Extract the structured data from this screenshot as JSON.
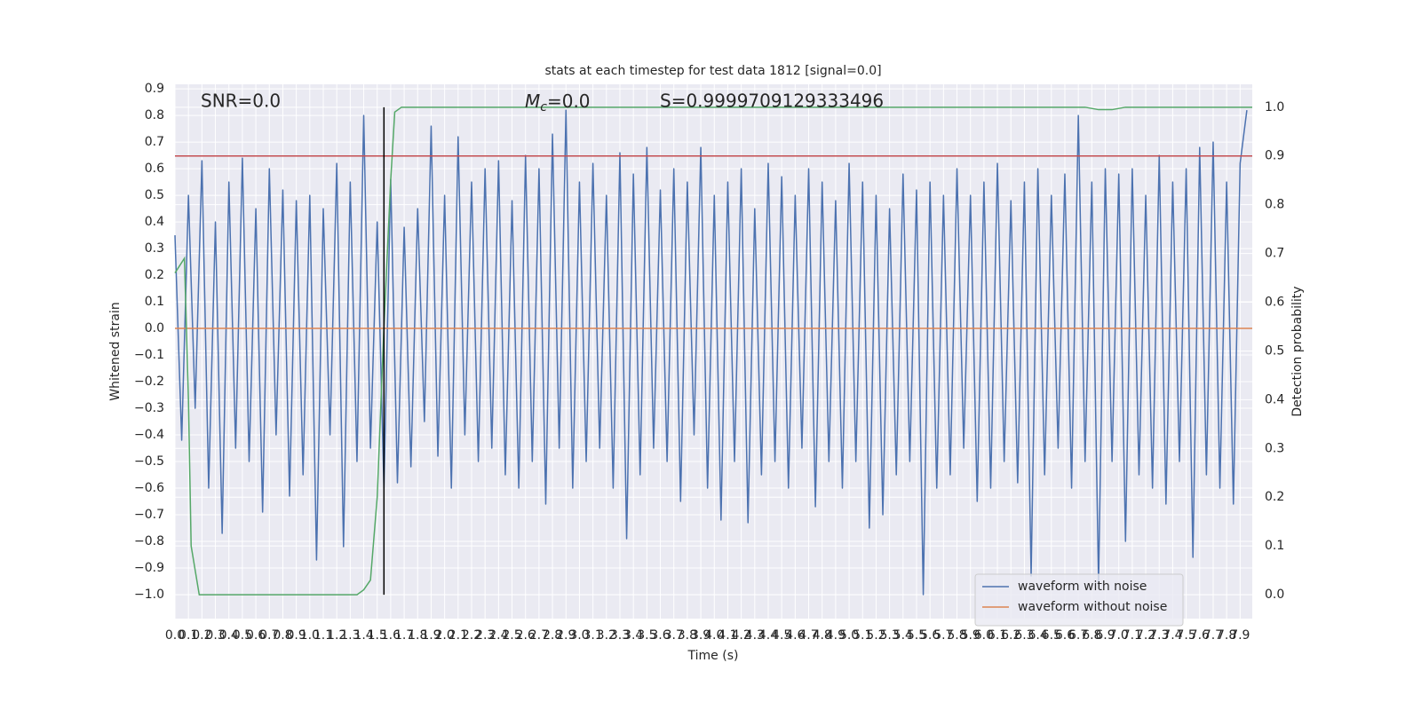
{
  "chart_data": {
    "type": "line",
    "title": "stats at each timestep for test data 1812 [signal=0.0]",
    "x_label": "Time (s)",
    "y_label": "Whitened strain",
    "y2_label": "Detection probability",
    "annotations": {
      "snr": "SNR=0.0",
      "mc_symbol": "M",
      "mc_subscript": "c",
      "mc_text": "=0.0",
      "s": "S=0.9999709129333496"
    },
    "xlim": [
      0,
      7.99
    ],
    "ylim": [
      -1.09,
      0.917
    ],
    "y2lim": [
      -0.049,
      1.047
    ],
    "grid": true,
    "legend": "lower right",
    "xticks": [
      {
        "value": 0,
        "label": "0.0"
      },
      0.1,
      0.2,
      0.3,
      0.4,
      0.5,
      0.6,
      0.7,
      0.8,
      0.9,
      {
        "value": 1,
        "label": "1.0"
      },
      1.1,
      1.2,
      1.3,
      1.4,
      1.5,
      1.6,
      1.7,
      1.8,
      1.9,
      {
        "value": 2,
        "label": "2.0"
      },
      2.1,
      2.2,
      2.3,
      2.4,
      2.5,
      2.6,
      2.7,
      2.8,
      2.9,
      {
        "value": 3,
        "label": "3.0"
      },
      3.1,
      3.2,
      3.3,
      3.4,
      3.5,
      3.6,
      3.7,
      3.8,
      3.9,
      {
        "value": 4,
        "label": "4.0"
      },
      4.1,
      4.2,
      4.3,
      4.4,
      4.5,
      4.6,
      4.7,
      4.8,
      4.9,
      {
        "value": 5,
        "label": "5.0"
      },
      5.1,
      5.2,
      5.3,
      5.4,
      5.5,
      5.6,
      5.7,
      5.8,
      5.9,
      {
        "value": 6,
        "label": "6.0"
      },
      6.1,
      6.2,
      6.3,
      6.4,
      6.5,
      6.6,
      6.7,
      6.8,
      6.9,
      {
        "value": 7,
        "label": "7.0"
      },
      7.1,
      7.2,
      7.3,
      7.4,
      7.5,
      7.6,
      7.7,
      7.8,
      7.9
    ],
    "yticks": [
      {
        "value": -1,
        "label": "−1.0"
      },
      {
        "value": -0.9,
        "label": "−0.9"
      },
      {
        "value": -0.8,
        "label": "−0.8"
      },
      {
        "value": -0.7,
        "label": "−0.7"
      },
      {
        "value": -0.6,
        "label": "−0.6"
      },
      {
        "value": -0.5,
        "label": "−0.5"
      },
      {
        "value": -0.4,
        "label": "−0.4"
      },
      {
        "value": -0.3,
        "label": "−0.3"
      },
      {
        "value": -0.2,
        "label": "−0.2"
      },
      {
        "value": -0.1,
        "label": "−0.1"
      },
      {
        "value": 0,
        "label": "0.0"
      },
      0.1,
      0.2,
      0.3,
      0.4,
      0.5,
      0.6,
      0.7,
      0.8,
      0.9
    ],
    "y2ticks": [
      {
        "value": 0,
        "label": "0.0"
      },
      0.1,
      0.2,
      0.3,
      0.4,
      0.5,
      0.6,
      0.7,
      0.8,
      0.9,
      {
        "value": 1,
        "label": "1.0"
      }
    ],
    "series": [
      {
        "name": "waveform with noise",
        "color": "#4c72b0",
        "x": [
          0,
          0.05,
          0.1,
          0.15,
          0.2,
          0.25,
          0.3,
          0.35,
          0.4,
          0.45,
          0.5,
          0.55,
          0.6,
          0.65,
          0.7,
          0.75,
          0.8,
          0.85,
          0.9,
          0.95,
          1,
          1.05,
          1.1,
          1.15,
          1.2,
          1.25,
          1.3,
          1.35,
          1.4,
          1.45,
          1.5,
          1.55,
          1.6,
          1.65,
          1.7,
          1.75,
          1.8,
          1.85,
          1.9,
          1.95,
          2,
          2.05,
          2.1,
          2.15,
          2.2,
          2.25,
          2.3,
          2.35,
          2.4,
          2.45,
          2.5,
          2.55,
          2.6,
          2.65,
          2.7,
          2.75,
          2.8,
          2.85,
          2.9,
          2.95,
          3,
          3.05,
          3.1,
          3.15,
          3.2,
          3.25,
          3.3,
          3.35,
          3.4,
          3.45,
          3.5,
          3.55,
          3.6,
          3.65,
          3.7,
          3.75,
          3.8,
          3.85,
          3.9,
          3.95,
          4,
          4.05,
          4.1,
          4.15,
          4.2,
          4.25,
          4.3,
          4.35,
          4.4,
          4.45,
          4.5,
          4.55,
          4.6,
          4.65,
          4.7,
          4.75,
          4.8,
          4.85,
          4.9,
          4.95,
          5,
          5.05,
          5.1,
          5.15,
          5.2,
          5.25,
          5.3,
          5.35,
          5.4,
          5.45,
          5.5,
          5.55,
          5.6,
          5.65,
          5.7,
          5.75,
          5.8,
          5.85,
          5.9,
          5.95,
          6,
          6.05,
          6.1,
          6.15,
          6.2,
          6.25,
          6.3,
          6.35,
          6.4,
          6.45,
          6.5,
          6.55,
          6.6,
          6.65,
          6.7,
          6.75,
          6.8,
          6.85,
          6.9,
          6.95,
          7,
          7.05,
          7.1,
          7.15,
          7.2,
          7.25,
          7.3,
          7.35,
          7.4,
          7.45,
          7.5,
          7.55,
          7.6,
          7.65,
          7.7,
          7.75,
          7.8,
          7.85,
          7.9,
          7.95
        ],
        "values": [
          0.35,
          -0.42,
          0.5,
          -0.3,
          0.63,
          -0.6,
          0.4,
          -0.77,
          0.55,
          -0.45,
          0.64,
          -0.5,
          0.45,
          -0.69,
          0.6,
          -0.4,
          0.52,
          -0.63,
          0.48,
          -0.55,
          0.5,
          -0.87,
          0.45,
          -0.4,
          0.62,
          -0.82,
          0.55,
          -0.5,
          0.8,
          -0.45,
          0.4,
          -0.6,
          0.56,
          -0.58,
          0.38,
          -0.52,
          0.45,
          -0.35,
          0.76,
          -0.48,
          0.5,
          -0.6,
          0.72,
          -0.4,
          0.55,
          -0.5,
          0.6,
          -0.45,
          0.63,
          -0.55,
          0.48,
          -0.6,
          0.65,
          -0.5,
          0.6,
          -0.66,
          0.73,
          -0.45,
          0.82,
          -0.6,
          0.55,
          -0.5,
          0.62,
          -0.45,
          0.5,
          -0.6,
          0.66,
          -0.79,
          0.58,
          -0.55,
          0.68,
          -0.45,
          0.52,
          -0.5,
          0.6,
          -0.65,
          0.55,
          -0.4,
          0.68,
          -0.6,
          0.5,
          -0.72,
          0.55,
          -0.5,
          0.6,
          -0.73,
          0.45,
          -0.55,
          0.62,
          -0.5,
          0.57,
          -0.6,
          0.5,
          -0.45,
          0.6,
          -0.67,
          0.55,
          -0.5,
          0.48,
          -0.6,
          0.62,
          -0.5,
          0.55,
          -0.75,
          0.5,
          -0.7,
          0.45,
          -0.55,
          0.58,
          -0.5,
          0.52,
          -1.0,
          0.55,
          -0.6,
          0.5,
          -0.55,
          0.6,
          -0.45,
          0.5,
          -0.65,
          0.55,
          -0.6,
          0.62,
          -0.5,
          0.48,
          -0.58,
          0.55,
          -0.93,
          0.6,
          -0.55,
          0.5,
          -0.45,
          0.58,
          -0.6,
          0.8,
          -0.5,
          0.55,
          -0.96,
          0.6,
          -0.5,
          0.58,
          -0.8,
          0.6,
          -0.55,
          0.5,
          -0.6,
          0.65,
          -0.66,
          0.55,
          -0.5,
          0.6,
          -0.86,
          0.68,
          -0.55,
          0.7,
          -0.6,
          0.55,
          -0.66,
          0.62,
          0.82
        ]
      },
      {
        "name": "waveform without noise",
        "color": "#dd8452",
        "x": [
          0,
          7.99
        ],
        "values": [
          0,
          0
        ]
      }
    ],
    "probability": {
      "color": "#55a868",
      "axis": "y2",
      "x": [
        0,
        0.07,
        0.1,
        0.12,
        0.18,
        1.35,
        1.4,
        1.45,
        1.5,
        1.55,
        1.6,
        1.63,
        1.68,
        6.75,
        6.85,
        6.95,
        7.05,
        7.99
      ],
      "values": [
        0.66,
        0.69,
        0.4,
        0.1,
        0,
        0,
        0.01,
        0.03,
        0.2,
        0.55,
        0.85,
        0.99,
        1,
        1,
        0.995,
        0.995,
        1,
        1
      ]
    },
    "threshold": {
      "value": 0.9,
      "color": "#c44e52",
      "axis": "y2"
    },
    "marker": {
      "x": 1.55,
      "ymin": 0,
      "ymax": 1,
      "color": "#000000",
      "axis": "y2"
    }
  }
}
